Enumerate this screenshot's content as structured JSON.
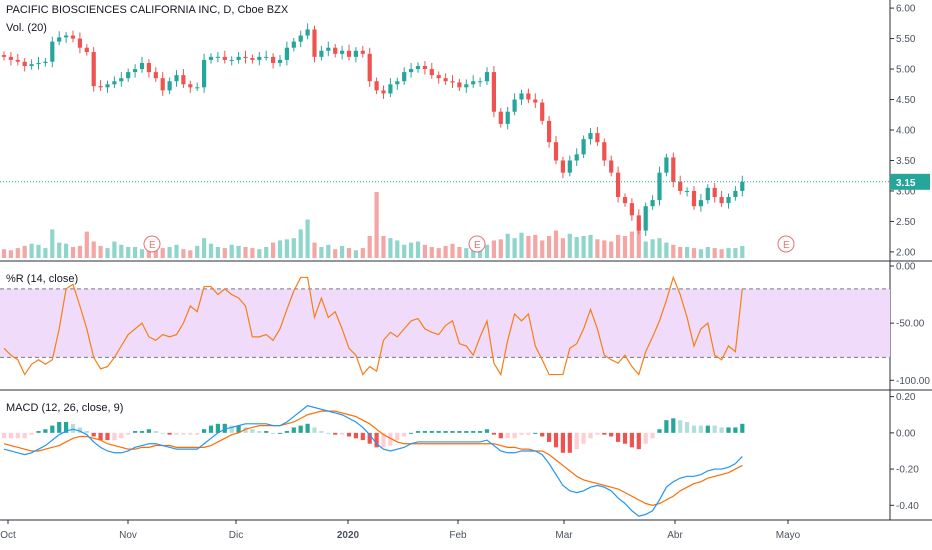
{
  "header": {
    "title": "PACIFIC BIOSCIENCES CALIFORNIA INC, D, Cboe BZX",
    "volume_label": "Vol. (20)"
  },
  "colors": {
    "up": "#26a69a",
    "down": "#ef5350",
    "up_volume": "#8fd5cc",
    "down_volume": "#f4a6a5",
    "price_line": "#26a69a",
    "williams_r": "#f57f17",
    "williams_band": "#f0dcfa",
    "macd_line": "#2196f3",
    "signal_line": "#ff6d00",
    "hist_up_strong": "#26a69a",
    "hist_up_weak": "#b2dfdb",
    "hist_down_strong": "#ef5350",
    "hist_down_weak": "#ffcdd2",
    "earnings_marker": "#e57373",
    "grid": "#f0f3fa",
    "axis_text": "#4c525e"
  },
  "chart_data": [
    {
      "type": "candlestick",
      "name": "price",
      "title": "PACIFIC BIOSCIENCES CALIFORNIA INC, D, Cboe BZX",
      "ylim": [
        1.9,
        6.1
      ],
      "y_ticks": [
        "6.00",
        "5.50",
        "5.00",
        "4.50",
        "4.00",
        "3.50",
        "3.00",
        "2.50",
        "2.00"
      ],
      "last_price": "3.15",
      "closes": [
        5.2,
        5.15,
        5.12,
        5.05,
        5.08,
        5.1,
        5.12,
        5.45,
        5.52,
        5.55,
        5.5,
        5.35,
        5.28,
        4.72,
        4.7,
        4.75,
        4.8,
        4.85,
        4.95,
        5.0,
        5.1,
        4.95,
        4.85,
        4.65,
        4.8,
        4.9,
        4.75,
        4.7,
        4.7,
        5.15,
        5.2,
        5.2,
        5.15,
        5.15,
        5.2,
        5.18,
        5.15,
        5.2,
        5.2,
        5.1,
        5.15,
        5.35,
        5.45,
        5.55,
        5.65,
        5.2,
        5.3,
        5.35,
        5.25,
        5.3,
        5.2,
        5.3,
        5.25,
        4.8,
        4.65,
        4.6,
        4.75,
        4.8,
        4.95,
        5.0,
        5.05,
        5.0,
        4.9,
        4.85,
        4.8,
        4.78,
        4.7,
        4.75,
        4.8,
        4.8,
        4.95,
        4.3,
        4.1,
        4.3,
        4.5,
        4.6,
        4.5,
        4.45,
        4.15,
        3.8,
        3.5,
        3.3,
        3.5,
        3.6,
        3.85,
        3.95,
        3.8,
        3.5,
        3.3,
        2.9,
        2.8,
        2.6,
        2.35,
        2.75,
        2.85,
        3.3,
        3.55,
        3.15,
        3.0,
        3.0,
        2.75,
        2.85,
        3.05,
        2.9,
        2.8,
        2.9,
        3.0,
        3.15
      ],
      "volumes": [
        0.8,
        0.7,
        0.9,
        1.1,
        1.3,
        1.2,
        0.9,
        2.6,
        1.4,
        1.3,
        1.0,
        1.1,
        2.4,
        1.5,
        1.1,
        0.9,
        1.5,
        1.2,
        1.0,
        1.0,
        0.8,
        1.9,
        1.3,
        0.9,
        1.0,
        1.2,
        0.8,
        0.7,
        1.1,
        1.8,
        1.3,
        1.0,
        0.9,
        1.2,
        1.1,
        1.0,
        0.9,
        0.8,
        1.0,
        1.4,
        1.6,
        1.7,
        1.8,
        2.6,
        3.5,
        1.4,
        1.0,
        1.2,
        0.8,
        1.1,
        0.9,
        0.7,
        0.9,
        2.0,
        6.0,
        2.0,
        1.8,
        1.6,
        1.2,
        1.4,
        1.5,
        1.2,
        1.0,
        0.9,
        1.1,
        1.3,
        1.0,
        0.9,
        0.8,
        1.0,
        1.2,
        1.6,
        1.7,
        2.2,
        1.8,
        2.3,
        2.0,
        2.1,
        1.6,
        2.0,
        2.5,
        1.8,
        2.2,
        1.9,
        2.0,
        2.1,
        1.7,
        1.6,
        1.5,
        2.1,
        2.0,
        2.4,
        3.0,
        1.5,
        1.7,
        1.8,
        1.4,
        1.2,
        1.0,
        1.0,
        0.9,
        0.8,
        1.0,
        0.9,
        0.8,
        0.9,
        0.9,
        1.1
      ],
      "earnings_markers": [
        "E",
        "E",
        "E"
      ]
    },
    {
      "type": "line",
      "name": "williams_r",
      "legend": "%R (14, close)",
      "ylim": [
        -105,
        0
      ],
      "y_ticks": [
        "0.00",
        "-50.00",
        "-100.00"
      ],
      "band": [
        -20,
        -80
      ],
      "values": [
        -72,
        -78,
        -82,
        -95,
        -86,
        -82,
        -86,
        -82,
        -55,
        -20,
        -16,
        -35,
        -55,
        -80,
        -90,
        -88,
        -80,
        -70,
        -60,
        -55,
        -50,
        -62,
        -65,
        -60,
        -62,
        -60,
        -50,
        -35,
        -40,
        -18,
        -18,
        -25,
        -20,
        -25,
        -28,
        -35,
        -62,
        -62,
        -60,
        -65,
        -55,
        -38,
        -22,
        -10,
        -10,
        -45,
        -28,
        -45,
        -40,
        -55,
        -72,
        -78,
        -95,
        -88,
        -92,
        -65,
        -58,
        -62,
        -55,
        -48,
        -46,
        -55,
        -58,
        -60,
        -52,
        -48,
        -68,
        -70,
        -78,
        -62,
        -48,
        -85,
        -95,
        -65,
        -42,
        -48,
        -42,
        -70,
        -82,
        -95,
        -95,
        -95,
        -72,
        -68,
        -55,
        -38,
        -55,
        -78,
        -82,
        -85,
        -78,
        -88,
        -95,
        -75,
        -62,
        -48,
        -30,
        -10,
        -25,
        -45,
        -70,
        -55,
        -50,
        -78,
        -82,
        -70,
        -75,
        -20
      ]
    },
    {
      "type": "line",
      "name": "macd",
      "legend": "MACD (12, 26, close, 9)",
      "ylim": [
        -0.47,
        0.22
      ],
      "y_ticks": [
        "0.20",
        "0.00",
        "-0.20",
        "-0.40"
      ],
      "macd": [
        -0.09,
        -0.1,
        -0.11,
        -0.12,
        -0.11,
        -0.09,
        -0.07,
        -0.04,
        -0.01,
        0.01,
        0.02,
        0.01,
        -0.01,
        -0.05,
        -0.08,
        -0.1,
        -0.11,
        -0.11,
        -0.1,
        -0.08,
        -0.07,
        -0.06,
        -0.06,
        -0.07,
        -0.08,
        -0.09,
        -0.09,
        -0.09,
        -0.09,
        -0.06,
        -0.03,
        0.0,
        0.02,
        0.03,
        0.04,
        0.05,
        0.05,
        0.05,
        0.05,
        0.04,
        0.04,
        0.06,
        0.09,
        0.12,
        0.15,
        0.14,
        0.13,
        0.12,
        0.11,
        0.1,
        0.08,
        0.06,
        0.03,
        -0.01,
        -0.06,
        -0.09,
        -0.1,
        -0.09,
        -0.08,
        -0.06,
        -0.05,
        -0.05,
        -0.05,
        -0.05,
        -0.05,
        -0.05,
        -0.05,
        -0.05,
        -0.05,
        -0.05,
        -0.04,
        -0.07,
        -0.1,
        -0.11,
        -0.11,
        -0.1,
        -0.1,
        -0.1,
        -0.12,
        -0.17,
        -0.23,
        -0.29,
        -0.32,
        -0.33,
        -0.32,
        -0.3,
        -0.29,
        -0.3,
        -0.32,
        -0.36,
        -0.39,
        -0.43,
        -0.46,
        -0.45,
        -0.43,
        -0.37,
        -0.3,
        -0.27,
        -0.25,
        -0.24,
        -0.24,
        -0.23,
        -0.21,
        -0.2,
        -0.2,
        -0.19,
        -0.17,
        -0.13
      ],
      "signal": [
        -0.06,
        -0.07,
        -0.08,
        -0.09,
        -0.1,
        -0.1,
        -0.09,
        -0.08,
        -0.07,
        -0.05,
        -0.03,
        -0.02,
        -0.02,
        -0.03,
        -0.04,
        -0.06,
        -0.07,
        -0.08,
        -0.09,
        -0.09,
        -0.08,
        -0.08,
        -0.07,
        -0.07,
        -0.07,
        -0.08,
        -0.08,
        -0.08,
        -0.08,
        -0.08,
        -0.07,
        -0.05,
        -0.03,
        -0.01,
        0.0,
        0.02,
        0.03,
        0.04,
        0.04,
        0.04,
        0.04,
        0.05,
        0.06,
        0.08,
        0.1,
        0.11,
        0.12,
        0.12,
        0.12,
        0.11,
        0.1,
        0.09,
        0.07,
        0.05,
        0.02,
        -0.01,
        -0.03,
        -0.05,
        -0.06,
        -0.06,
        -0.06,
        -0.06,
        -0.06,
        -0.06,
        -0.06,
        -0.06,
        -0.06,
        -0.06,
        -0.06,
        -0.06,
        -0.06,
        -0.06,
        -0.07,
        -0.08,
        -0.08,
        -0.09,
        -0.09,
        -0.1,
        -0.1,
        -0.12,
        -0.15,
        -0.18,
        -0.21,
        -0.24,
        -0.26,
        -0.27,
        -0.28,
        -0.29,
        -0.3,
        -0.31,
        -0.33,
        -0.35,
        -0.37,
        -0.39,
        -0.4,
        -0.39,
        -0.37,
        -0.35,
        -0.32,
        -0.3,
        -0.28,
        -0.27,
        -0.25,
        -0.24,
        -0.23,
        -0.22,
        -0.2,
        -0.18
      ]
    }
  ],
  "x_axis": {
    "labels": [
      "Oct",
      "Nov",
      "Dic",
      "2020",
      "Feb",
      "Mar",
      "Abr",
      "Mayo"
    ]
  }
}
